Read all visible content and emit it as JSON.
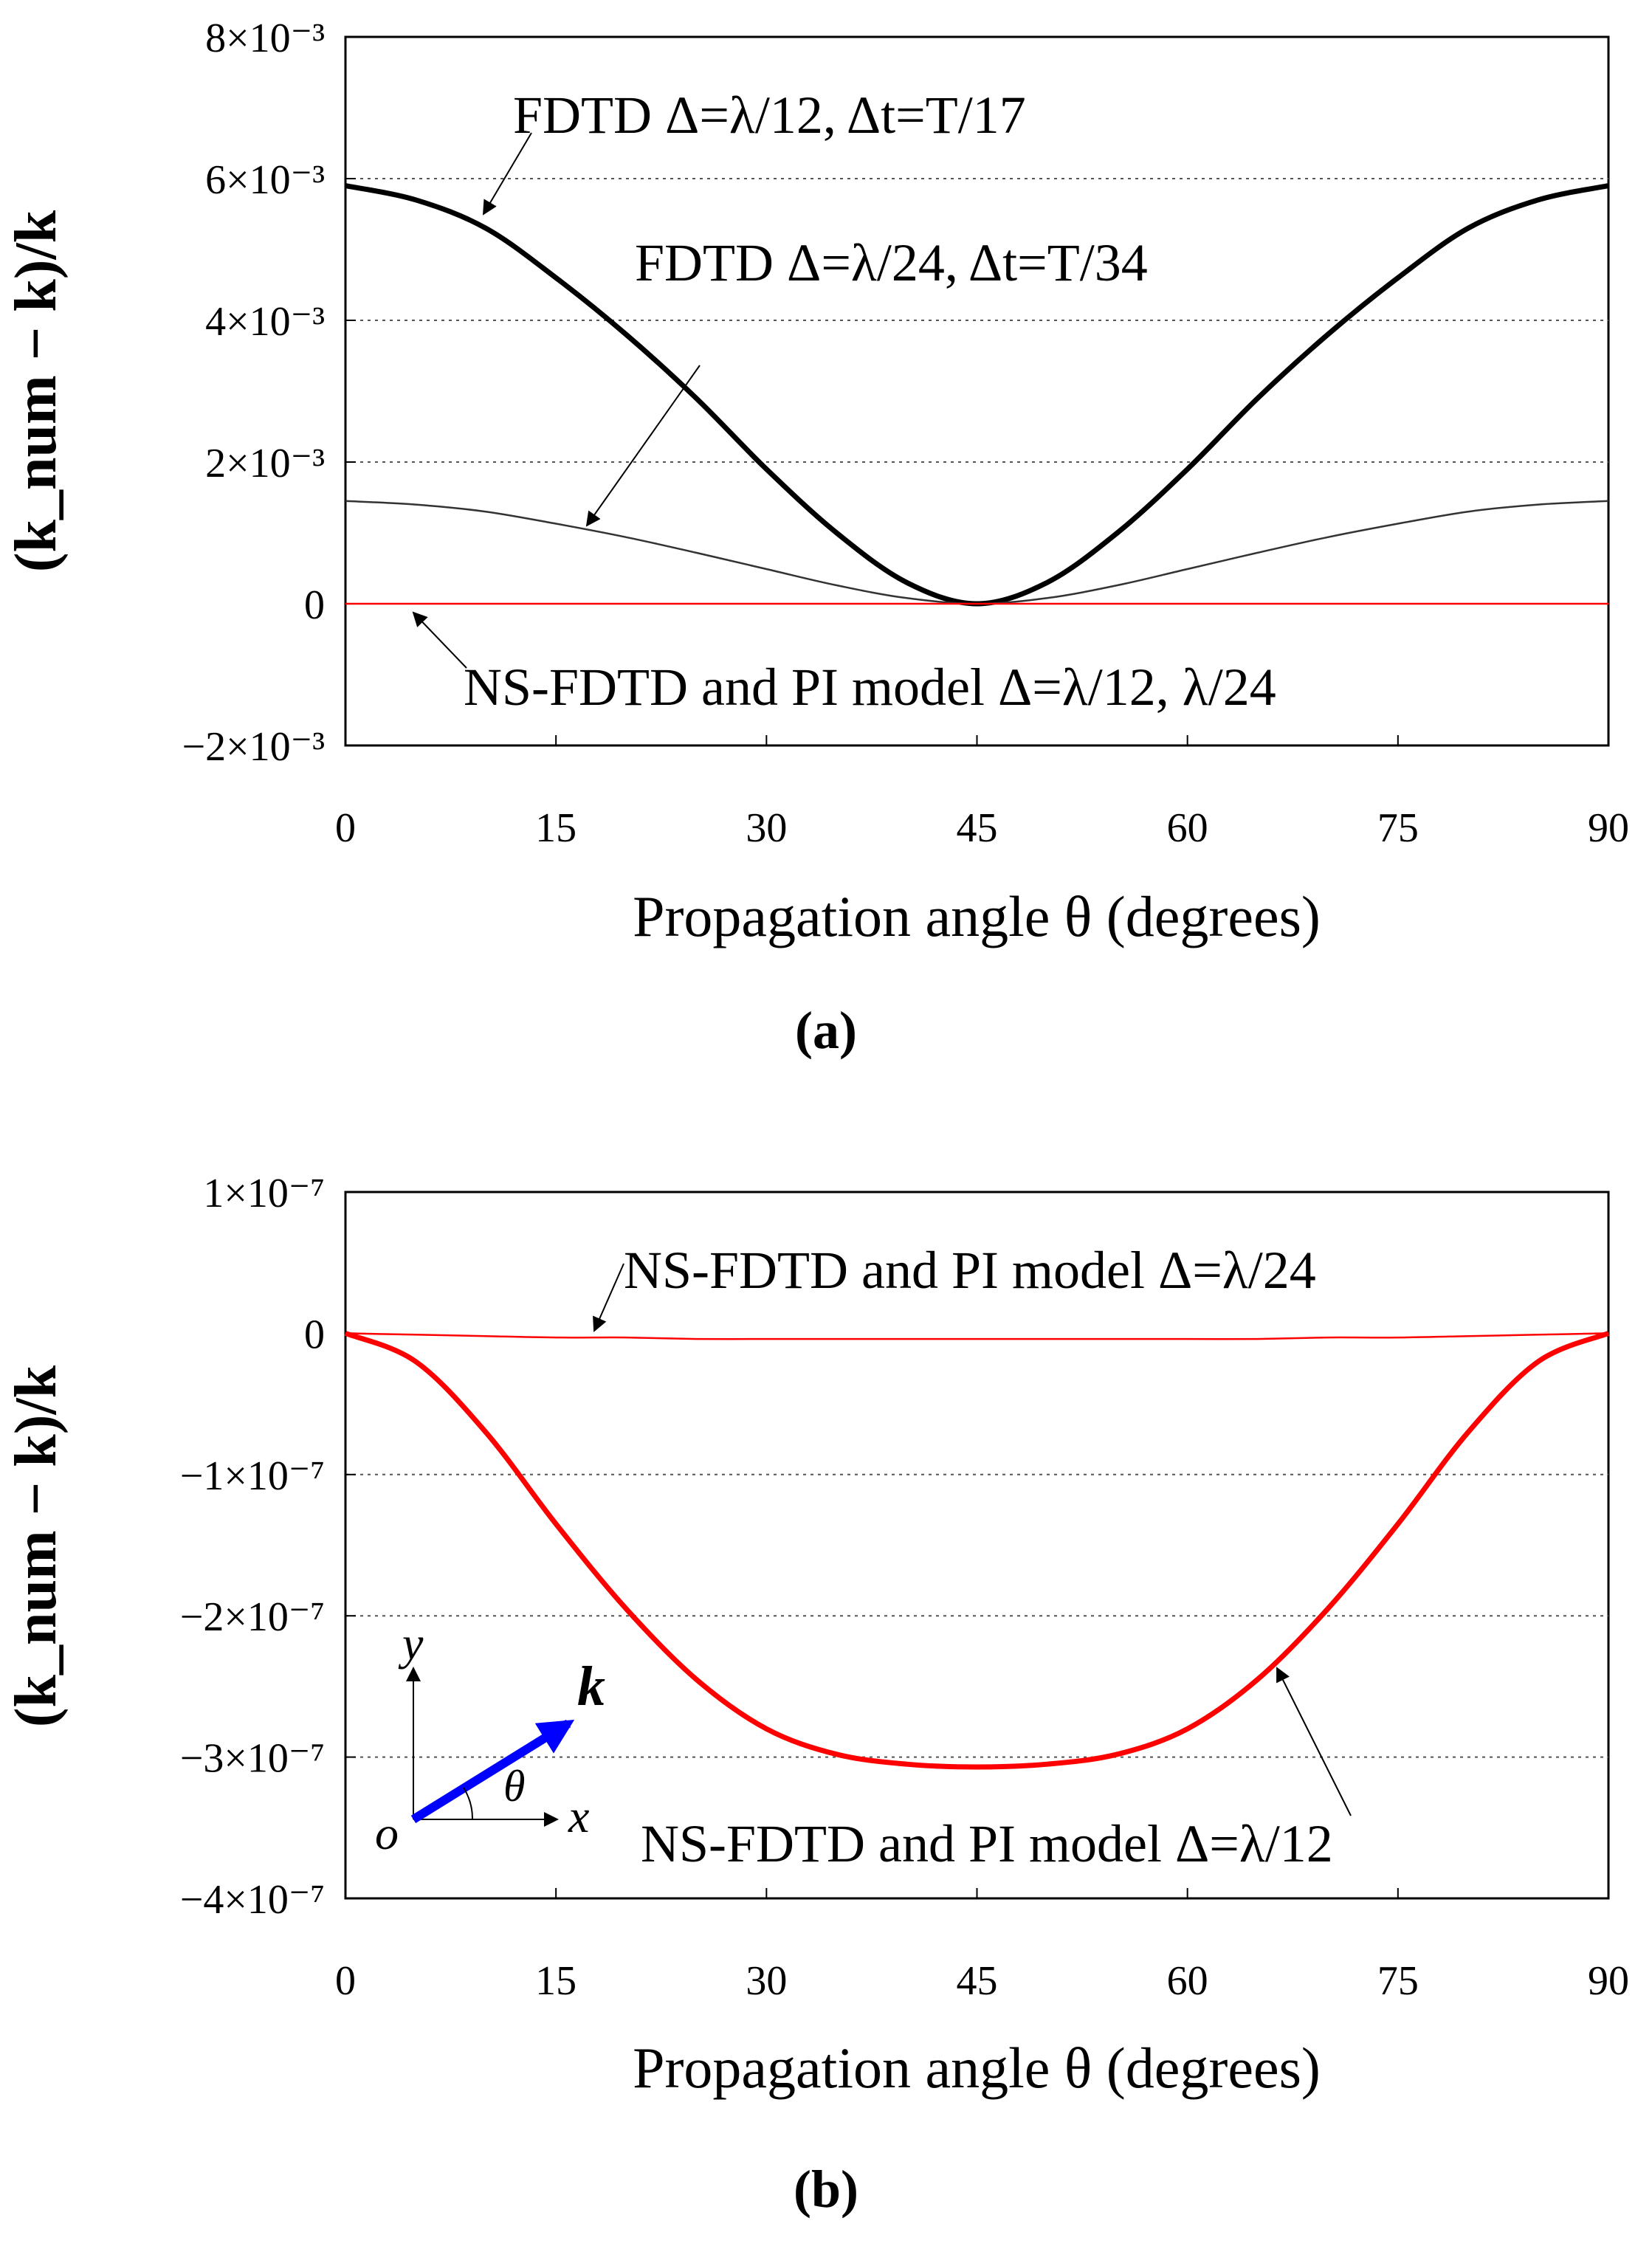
{
  "chart_data": [
    {
      "type": "line",
      "panel_label": "(a)",
      "xlabel": "Propagation angle θ (degrees)",
      "ylabel": "(k_num − k)/k",
      "xlim": [
        0,
        90
      ],
      "ylim": [
        -0.002,
        0.008
      ],
      "grid": "dotted horizontal at 2e-3, 4e-3, 6e-3",
      "x_ticks": [
        "0",
        "15",
        "30",
        "45",
        "60",
        "75",
        "90"
      ],
      "y_ticks": [
        "8×10⁻³",
        "6×10⁻³",
        "4×10⁻³",
        "2×10⁻³",
        "0",
        "−2×10⁻³"
      ],
      "x": [
        0,
        5,
        10,
        15,
        20,
        25,
        30,
        35,
        40,
        45,
        50,
        55,
        60,
        65,
        70,
        75,
        80,
        85,
        90
      ],
      "series": [
        {
          "name": "FDTD Δ=λ/12, Δt=T/17",
          "color": "#000000",
          "stroke": "thick",
          "values": [
            0.0059,
            0.0057,
            0.0053,
            0.0046,
            0.0038,
            0.0029,
            0.0019,
            0.001,
            0.0003,
            0.0,
            0.0003,
            0.001,
            0.0019,
            0.0029,
            0.0038,
            0.0046,
            0.0053,
            0.0057,
            0.0059
          ]
        },
        {
          "name": "FDTD Δ=λ/24, Δt=T/34",
          "color": "#333333",
          "stroke": "thin",
          "values": [
            0.00145,
            0.0014,
            0.0013,
            0.00113,
            0.00094,
            0.00072,
            0.00049,
            0.00026,
            8e-05,
            0.0,
            8e-05,
            0.00026,
            0.00049,
            0.00072,
            0.00094,
            0.00113,
            0.0013,
            0.0014,
            0.00145
          ]
        },
        {
          "name": "NS-FDTD and PI model Δ=λ/12, λ/24",
          "color": "#ff0000",
          "stroke": "thin",
          "values": [
            0,
            0,
            0,
            0,
            0,
            0,
            0,
            0,
            0,
            0,
            0,
            0,
            0,
            0,
            0,
            0,
            0,
            0,
            0
          ]
        }
      ],
      "annotations": [
        "FDTD Δ=λ/12, Δt=T/17",
        "FDTD Δ=λ/24, Δt=T/34",
        "NS-FDTD and PI model Δ=λ/12, λ/24"
      ]
    },
    {
      "type": "line",
      "panel_label": "(b)",
      "xlabel": "Propagation angle θ (degrees)",
      "ylabel": "(k_num − k)/k",
      "xlim": [
        0,
        90
      ],
      "ylim": [
        -4e-07,
        1e-07
      ],
      "grid": "dotted horizontal at -1e-7, -2e-7, -3e-7",
      "x_ticks": [
        "0",
        "15",
        "30",
        "45",
        "60",
        "75",
        "90"
      ],
      "y_ticks": [
        "1×10⁻⁷",
        "0",
        "−1×10⁻⁷",
        "−2×10⁻⁷",
        "−3×10⁻⁷",
        "−4×10⁻⁷"
      ],
      "x": [
        0,
        5,
        10,
        15,
        20,
        25,
        30,
        35,
        40,
        45,
        50,
        55,
        60,
        65,
        70,
        75,
        80,
        85,
        90
      ],
      "series": [
        {
          "name": "NS-FDTD and PI model Δ=λ/24",
          "color": "#ff0000",
          "stroke": "thin",
          "values": [
            0,
            -1e-09,
            -2e-09,
            -3e-09,
            -3e-09,
            -4e-09,
            -4e-09,
            -4e-09,
            -4e-09,
            -4e-09,
            -4e-09,
            -4e-09,
            -4e-09,
            -4e-09,
            -3e-09,
            -3e-09,
            -2e-09,
            -1e-09,
            0
          ]
        },
        {
          "name": "NS-FDTD and PI model Δ=λ/12",
          "color": "#ff0000",
          "stroke": "thick",
          "values": [
            0,
            -2e-08,
            -7e-08,
            -1.35e-07,
            -1.95e-07,
            -2.45e-07,
            -2.8e-07,
            -2.98e-07,
            -3.05e-07,
            -3.07e-07,
            -3.05e-07,
            -2.98e-07,
            -2.8e-07,
            -2.45e-07,
            -1.95e-07,
            -1.35e-07,
            -7e-08,
            -2e-08,
            0
          ]
        }
      ],
      "annotations": [
        "NS-FDTD and PI model Δ=λ/24",
        "NS-FDTD and PI model Δ=λ/12"
      ],
      "inset": {
        "x_label": "x",
        "y_label": "y",
        "origin_label": "o",
        "angle_label": "θ",
        "vector_label": "k",
        "vector_color": "#0000ff"
      }
    }
  ]
}
